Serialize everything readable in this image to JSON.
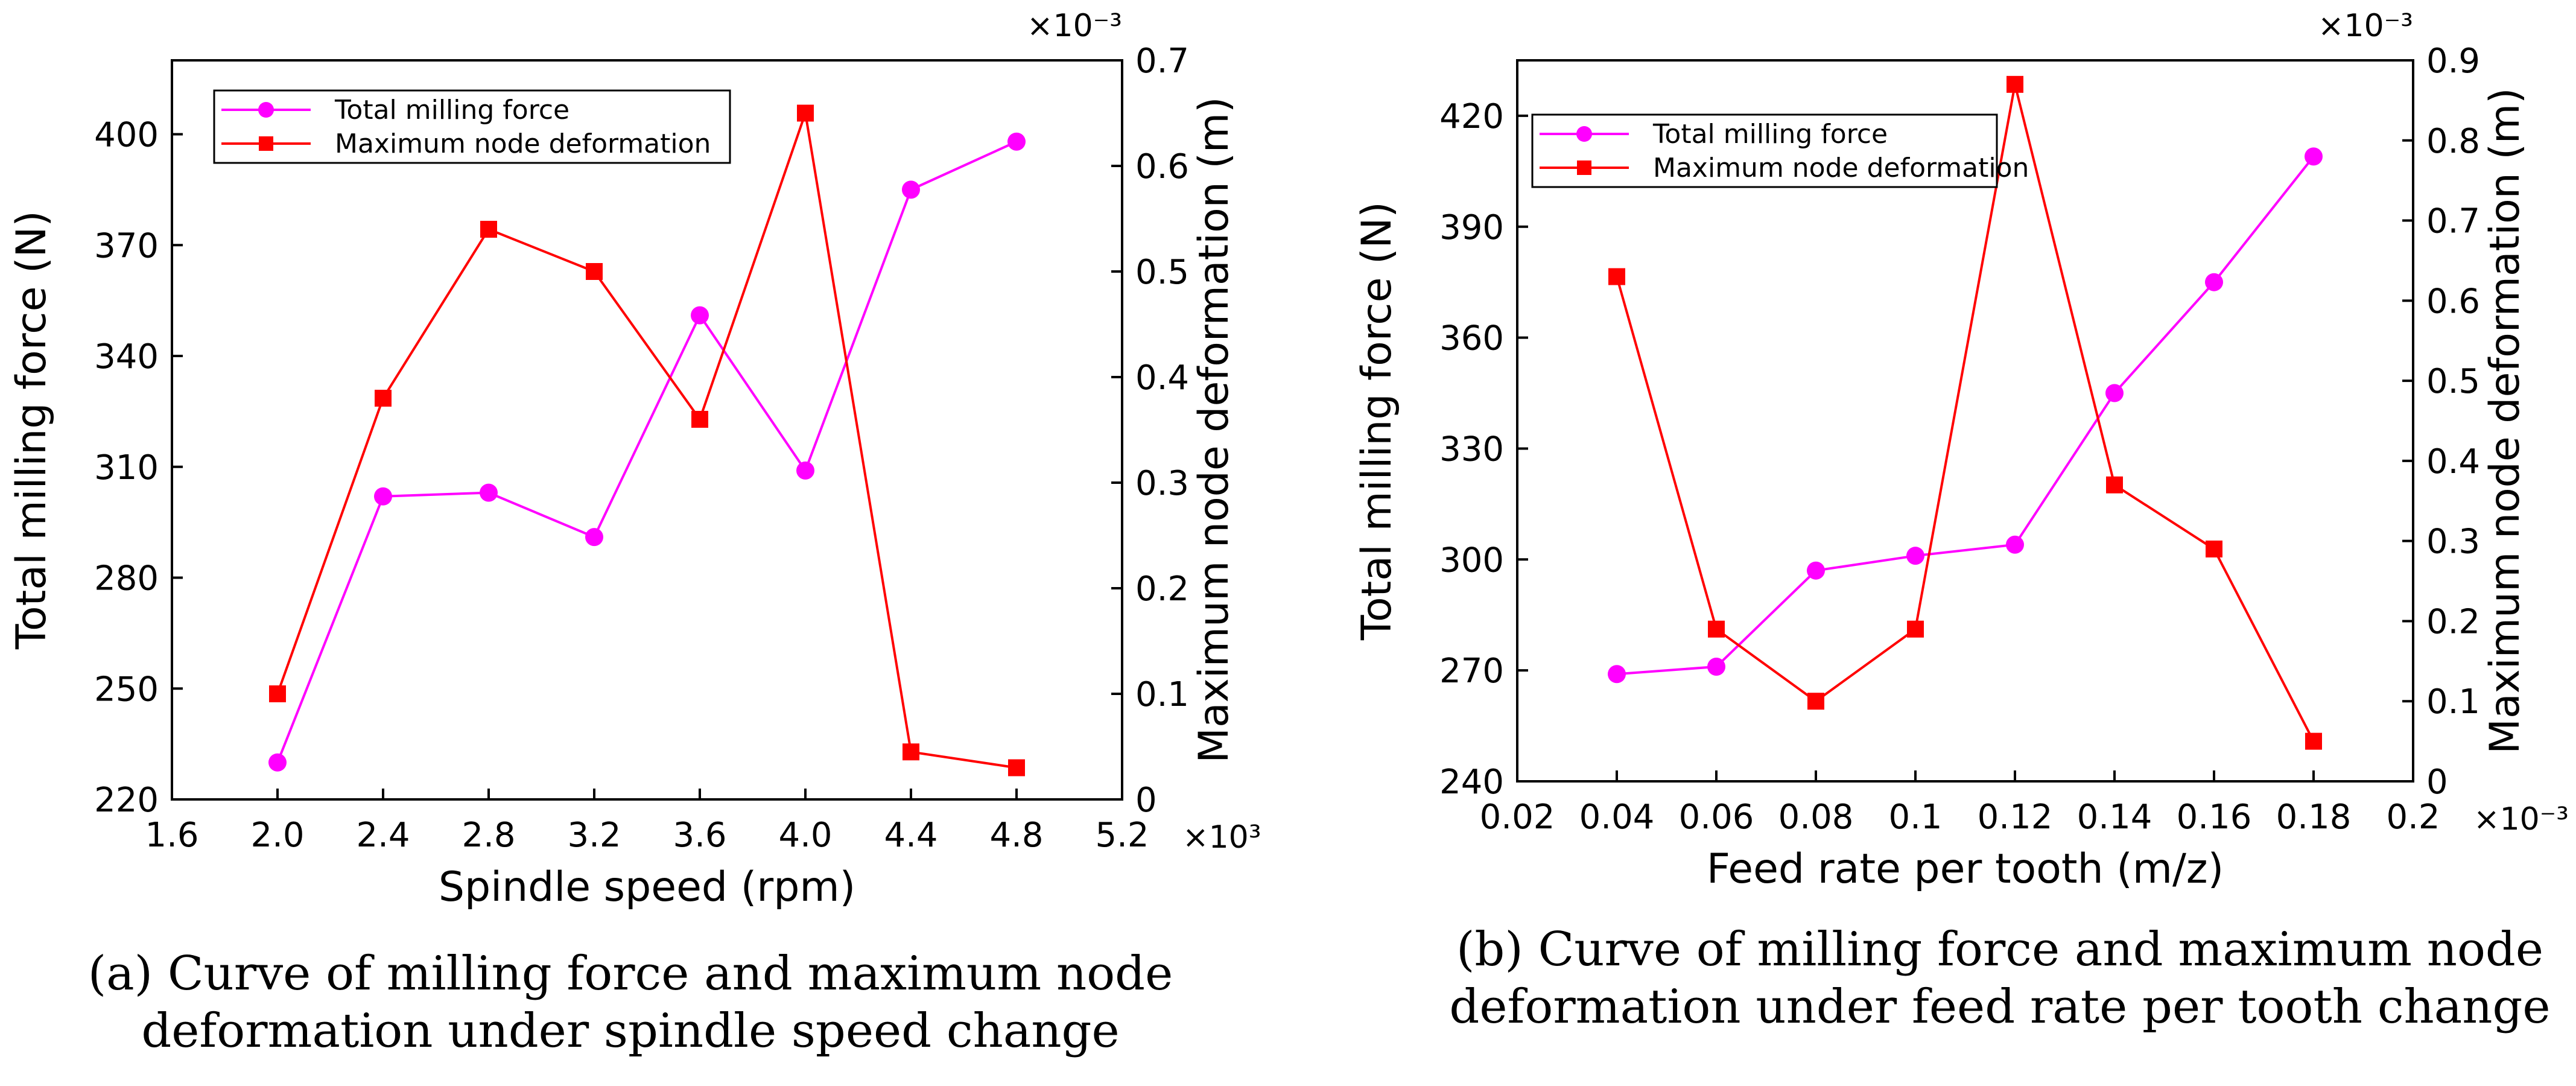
{
  "chart_data": [
    {
      "panel": "a",
      "type": "line",
      "caption": [
        "(a) Curve of milling force and maximum node",
        "deformation under spindle speed change"
      ],
      "xlabel": "Spindle speed (rpm)",
      "x_multiplier": "×10³",
      "xlim": [
        1.6,
        5.2
      ],
      "xticks": [
        "1.6",
        "2.0",
        "2.4",
        "2.8",
        "3.2",
        "3.6",
        "4.0",
        "4.4",
        "4.8",
        "5.2"
      ],
      "x": [
        2.0,
        2.4,
        2.8,
        3.2,
        3.6,
        4.0,
        4.4,
        4.8
      ],
      "y_left_label": "Total milling force (N)",
      "y_left_lim": [
        220,
        420
      ],
      "y_left_ticks": [
        "220",
        "250",
        "280",
        "310",
        "340",
        "370",
        "400"
      ],
      "y_right_label": "Maximum node deformation (m)",
      "y_right_multiplier": "×10⁻³",
      "y_right_lim": [
        0,
        0.7
      ],
      "y_right_ticks": [
        "0",
        "0.1",
        "0.2",
        "0.3",
        "0.4",
        "0.5",
        "0.6",
        "0.7"
      ],
      "series": [
        {
          "name": "Total milling force",
          "axis": "left",
          "color": "#ff00ff",
          "marker": "circle",
          "values": [
            230,
            302,
            303,
            291,
            351,
            309,
            385,
            398
          ]
        },
        {
          "name": "Maximum node deformation",
          "axis": "right",
          "color": "#ff0000",
          "marker": "square",
          "values": [
            0.1,
            0.38,
            0.54,
            0.5,
            0.36,
            0.65,
            0.045,
            0.03
          ]
        }
      ],
      "legend_position": "top-left"
    },
    {
      "panel": "b",
      "type": "line",
      "caption": [
        "(b) Curve of milling force and maximum node",
        "deformation under feed rate per tooth change"
      ],
      "xlabel": "Feed rate per tooth (m/z)",
      "x_multiplier": "×10⁻³",
      "xlim": [
        0.02,
        0.2
      ],
      "xticks": [
        "0.02",
        "0.04",
        "0.06",
        "0.08",
        "0.1",
        "0.12",
        "0.14",
        "0.16",
        "0.18",
        "0.2"
      ],
      "x": [
        0.04,
        0.06,
        0.08,
        0.1,
        0.12,
        0.14,
        0.16,
        0.18
      ],
      "y_left_label": "Total milling force (N)",
      "y_left_lim": [
        240,
        435
      ],
      "y_left_ticks": [
        "240",
        "270",
        "300",
        "330",
        "360",
        "390",
        "420"
      ],
      "y_right_label": "Maximum node deformation (m)",
      "y_right_multiplier": "×10⁻³",
      "y_right_lim": [
        0,
        0.9
      ],
      "y_right_ticks": [
        "0",
        "0.1",
        "0.2",
        "0.3",
        "0.4",
        "0.5",
        "0.6",
        "0.7",
        "0.8",
        "0.9"
      ],
      "series": [
        {
          "name": "Total milling force",
          "axis": "left",
          "color": "#ff00ff",
          "marker": "circle",
          "values": [
            269,
            271,
            297,
            301,
            304,
            345,
            375,
            409
          ]
        },
        {
          "name": "Maximum node deformation",
          "axis": "right",
          "color": "#ff0000",
          "marker": "square",
          "values": [
            0.63,
            0.19,
            0.1,
            0.19,
            0.87,
            0.37,
            0.29,
            0.05
          ]
        }
      ],
      "legend_position": "top-left"
    }
  ]
}
